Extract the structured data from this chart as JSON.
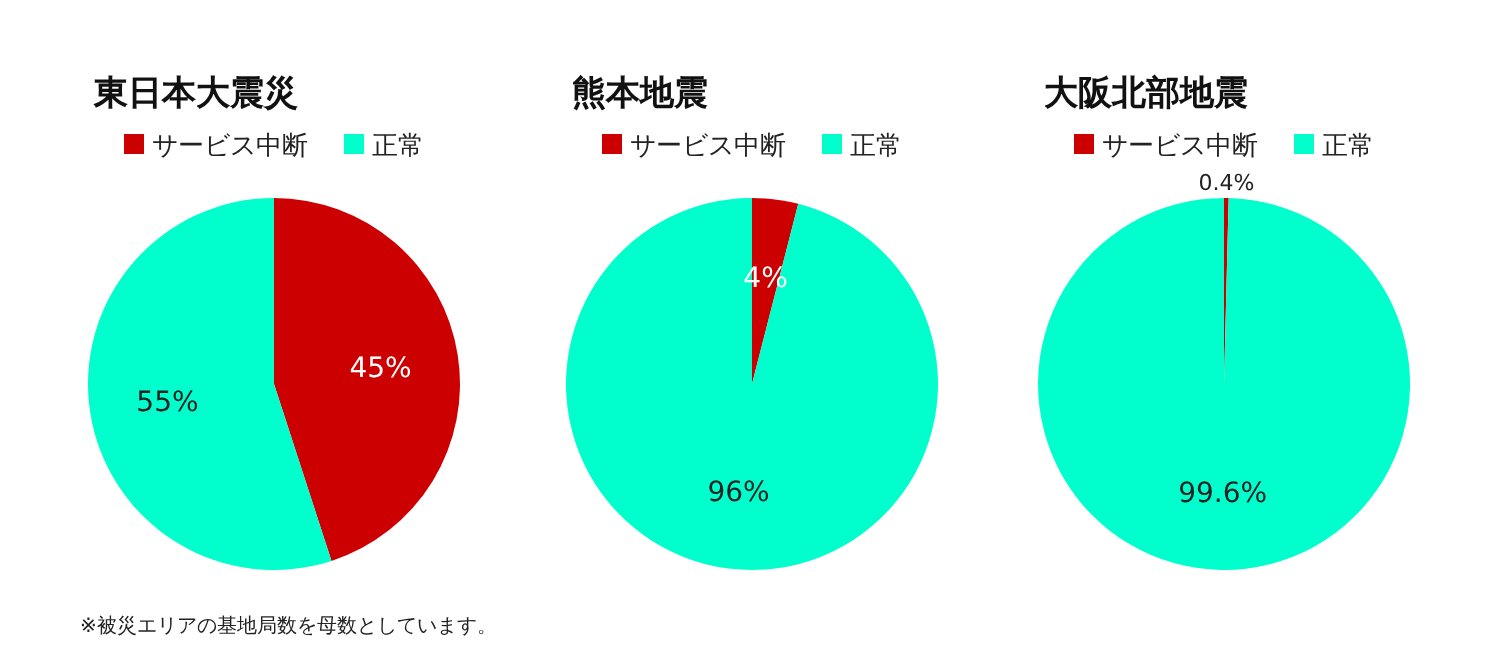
{
  "chart_data": [
    {
      "type": "pie",
      "title": "東日本大震災",
      "categories": [
        "サービス中断",
        "正常"
      ],
      "values": [
        45,
        55
      ],
      "colors": [
        "#cc0000",
        "#00ffcc"
      ],
      "value_labels": [
        "45%",
        "55%"
      ],
      "legend": "top",
      "annotations": [
        "※被災エリアの基地局数を母数としています。"
      ]
    },
    {
      "type": "pie",
      "title": "熊本地震",
      "categories": [
        "サービス中断",
        "正常"
      ],
      "values": [
        4,
        96
      ],
      "colors": [
        "#cc0000",
        "#00ffcc"
      ],
      "value_labels": [
        "4%",
        "96%"
      ],
      "legend": "top"
    },
    {
      "type": "pie",
      "title": "大阪北部地震",
      "categories": [
        "サービス中断",
        "正常"
      ],
      "values": [
        0.4,
        99.6
      ],
      "colors": [
        "#cc0000",
        "#00ffcc"
      ],
      "value_labels": [
        "0.4%",
        "99.6%"
      ],
      "legend": "top"
    }
  ]
}
